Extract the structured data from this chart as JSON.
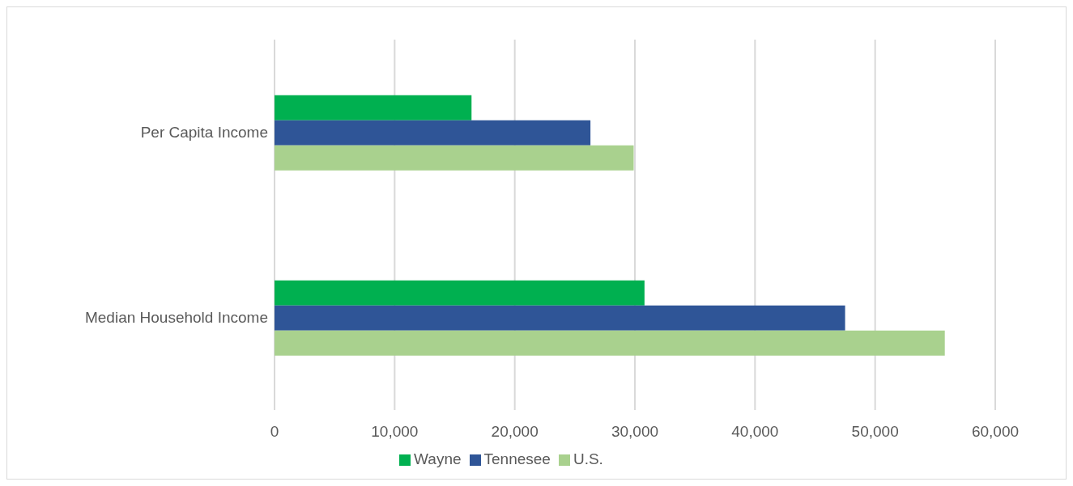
{
  "chart_data": {
    "type": "bar",
    "orientation": "horizontal",
    "categories": [
      "Per Capita Income",
      "Median Household Income"
    ],
    "series": [
      {
        "name": "Wayne",
        "color": "#00b050",
        "values": [
          16400,
          30800
        ]
      },
      {
        "name": "Tennesee",
        "color": "#2f5597",
        "values": [
          26300,
          47500
        ]
      },
      {
        "name": "U.S.",
        "color": "#a9d18e",
        "values": [
          29900,
          55800
        ]
      }
    ],
    "xlim": [
      0,
      60000
    ],
    "xticks": [
      0,
      {
        "value": 10000,
        "label": "10,000"
      },
      {
        "value": 20000,
        "label": "20,000"
      },
      {
        "value": 30000,
        "label": "30,000"
      },
      {
        "value": 40000,
        "label": "40,000"
      },
      {
        "value": 50000,
        "label": "50,000"
      },
      {
        "value": 60000,
        "label": "60,000"
      }
    ],
    "grid": "x",
    "legend": "bottom"
  }
}
